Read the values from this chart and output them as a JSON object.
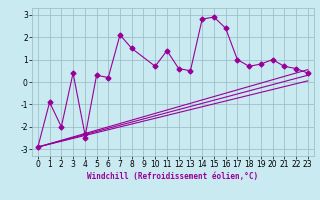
{
  "xlabel": "Windchill (Refroidissement éolien,°C)",
  "background_color": "#c8eaf0",
  "line_color": "#990099",
  "grid_color": "#9ab8c2",
  "xlim": [
    -0.5,
    23.5
  ],
  "ylim": [
    -3.3,
    3.3
  ],
  "yticks": [
    -3,
    -2,
    -1,
    0,
    1,
    2,
    3
  ],
  "xticks": [
    0,
    1,
    2,
    3,
    4,
    5,
    6,
    7,
    8,
    9,
    10,
    11,
    12,
    13,
    14,
    15,
    16,
    17,
    18,
    19,
    20,
    21,
    22,
    23
  ],
  "scatter_x": [
    0,
    1,
    2,
    3,
    4,
    4,
    5,
    6,
    7,
    8,
    10,
    11,
    12,
    13,
    14,
    15,
    16,
    17,
    18,
    19,
    20,
    21,
    22,
    23
  ],
  "scatter_y": [
    -2.9,
    -0.9,
    -2.0,
    0.4,
    -2.3,
    -2.5,
    0.3,
    0.2,
    2.1,
    1.5,
    0.7,
    1.4,
    0.6,
    0.5,
    2.8,
    2.9,
    2.4,
    1.0,
    0.7,
    0.8,
    1.0,
    0.7,
    0.6,
    0.4
  ],
  "line1_x": [
    0,
    23
  ],
  "line1_y": [
    -2.9,
    0.55
  ],
  "line2_x": [
    0,
    23
  ],
  "line2_y": [
    -2.9,
    0.3
  ],
  "line3_x": [
    0,
    23
  ],
  "line3_y": [
    -2.9,
    0.05
  ],
  "marker_size": 2.5,
  "line_width": 0.8,
  "xlabel_fontsize": 5.5,
  "tick_fontsize": 5.5
}
